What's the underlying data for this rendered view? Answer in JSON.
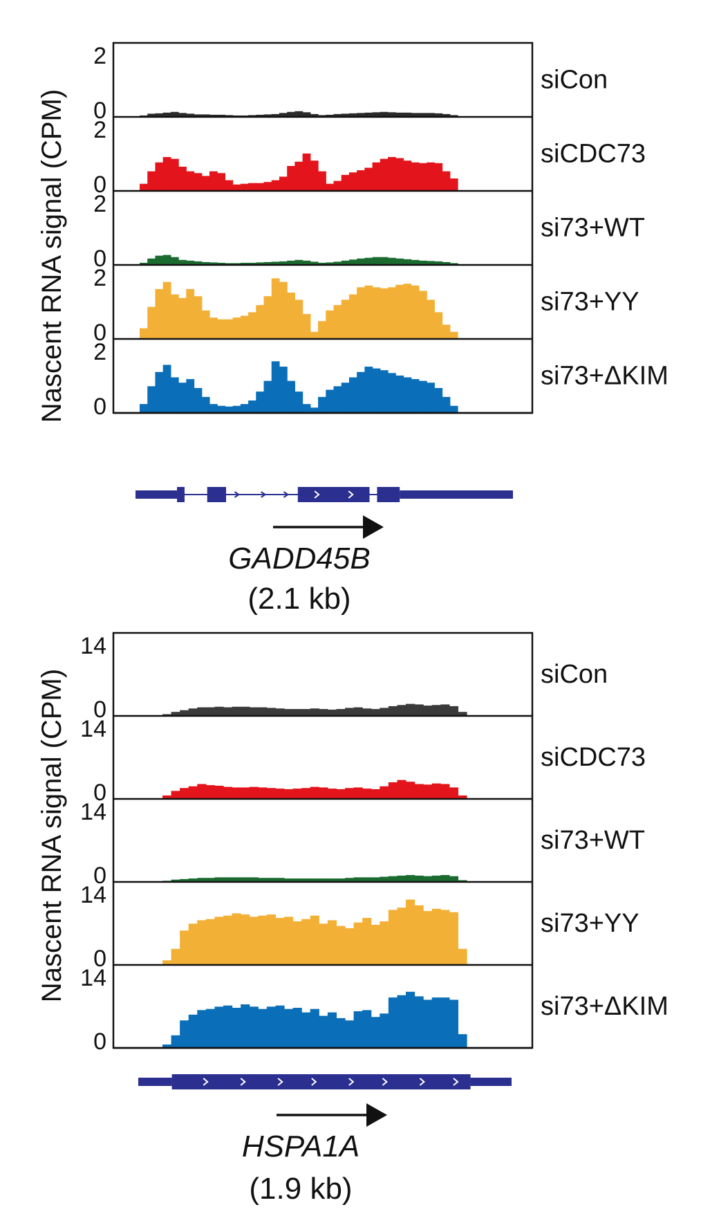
{
  "chart_data": [
    {
      "type": "area",
      "gene": "GADD45B",
      "gene_size": "(2.1 kb)",
      "ylabel": "Nascent RNA signal (CPM)",
      "ymax_label": "2",
      "ymin_label": "0",
      "ylim": [
        0,
        2
      ],
      "gene_model": {
        "color": "#2b2f8f",
        "intron_start": 0.0,
        "intron_end": 1.0,
        "exons": [
          [
            0.0,
            0.11,
            "thin"
          ],
          [
            0.11,
            0.13,
            "thick"
          ],
          [
            0.19,
            0.24,
            "thick"
          ],
          [
            0.43,
            0.62,
            "thick"
          ],
          [
            0.64,
            0.7,
            "thick"
          ],
          [
            0.7,
            1.0,
            "thin"
          ]
        ],
        "chevrons_in_exons": [
          0.48,
          0.57
        ],
        "chevrons_in_intron": [
          0.27,
          0.34,
          0.4
        ]
      },
      "series": [
        {
          "name": "siCon",
          "color": "#2a2a2a",
          "values": [
            0.04,
            0.09,
            0.1,
            0.12,
            0.14,
            0.11,
            0.09,
            0.07,
            0.07,
            0.06,
            0.06,
            0.05,
            0.04,
            0.04,
            0.05,
            0.06,
            0.07,
            0.08,
            0.11,
            0.14,
            0.16,
            0.13,
            0.08,
            0.05,
            0.06,
            0.08,
            0.09,
            0.1,
            0.11,
            0.12,
            0.13,
            0.14,
            0.13,
            0.12,
            0.12,
            0.11,
            0.11,
            0.11,
            0.1,
            0.08,
            0.05
          ]
        },
        {
          "name": "siCDC73",
          "color": "#e3141b",
          "values": [
            0.2,
            0.55,
            0.8,
            0.95,
            0.9,
            0.68,
            0.55,
            0.5,
            0.42,
            0.55,
            0.5,
            0.3,
            0.18,
            0.2,
            0.22,
            0.22,
            0.25,
            0.3,
            0.4,
            0.7,
            0.82,
            1.05,
            0.85,
            0.55,
            0.2,
            0.28,
            0.45,
            0.52,
            0.58,
            0.65,
            0.8,
            0.9,
            0.95,
            0.92,
            0.85,
            0.8,
            0.78,
            0.8,
            0.78,
            0.55,
            0.35
          ]
        },
        {
          "name": "si73+WT",
          "color": "#1b6b30",
          "values": [
            0.06,
            0.18,
            0.26,
            0.28,
            0.22,
            0.14,
            0.12,
            0.1,
            0.08,
            0.07,
            0.06,
            0.05,
            0.05,
            0.06,
            0.06,
            0.07,
            0.08,
            0.09,
            0.1,
            0.12,
            0.14,
            0.12,
            0.09,
            0.06,
            0.07,
            0.09,
            0.12,
            0.15,
            0.18,
            0.2,
            0.22,
            0.22,
            0.2,
            0.18,
            0.16,
            0.14,
            0.12,
            0.11,
            0.1,
            0.08,
            0.05
          ]
        },
        {
          "name": "si73+YY",
          "color": "#f3b036",
          "values": [
            0.3,
            0.9,
            1.4,
            1.6,
            1.25,
            1.15,
            1.4,
            1.2,
            0.8,
            0.6,
            0.55,
            0.55,
            0.6,
            0.65,
            0.75,
            0.95,
            1.2,
            1.7,
            1.6,
            1.3,
            1.1,
            0.7,
            0.2,
            0.5,
            0.8,
            0.95,
            1.1,
            1.25,
            1.45,
            1.5,
            1.45,
            1.42,
            1.45,
            1.52,
            1.55,
            1.5,
            1.35,
            1.1,
            0.75,
            0.4,
            0.2
          ]
        },
        {
          "name": "si73+ΔKIM",
          "color": "#0a6fb8",
          "values": [
            0.25,
            0.75,
            1.15,
            1.35,
            1.0,
            0.85,
            0.95,
            0.7,
            0.45,
            0.25,
            0.2,
            0.18,
            0.2,
            0.25,
            0.35,
            0.6,
            0.9,
            1.45,
            1.3,
            0.9,
            0.6,
            0.25,
            0.15,
            0.45,
            0.65,
            0.75,
            0.85,
            1.0,
            1.15,
            1.3,
            1.25,
            1.2,
            1.12,
            1.05,
            1.0,
            0.95,
            0.9,
            0.85,
            0.7,
            0.45,
            0.2
          ]
        }
      ]
    },
    {
      "type": "area",
      "gene": "HSPA1A",
      "gene_size": "(1.9 kb)",
      "ylabel": "Nascent RNA signal (CPM)",
      "ymax_label": "14",
      "ymin_label": "0",
      "ylim": [
        0,
        14
      ],
      "gene_model": {
        "color": "#2b2f8f",
        "intron_start": 0.0,
        "intron_end": 1.0,
        "exons": [
          [
            0.0,
            0.09,
            "thin"
          ],
          [
            0.09,
            0.89,
            "thick"
          ],
          [
            0.89,
            1.0,
            "thin"
          ]
        ],
        "chevrons_in_exons": [
          0.18,
          0.28,
          0.38,
          0.47,
          0.57,
          0.66,
          0.76,
          0.85
        ],
        "chevrons_in_intron": []
      },
      "series": [
        {
          "name": "siCon",
          "color": "#3a3a3a",
          "values": [
            0.3,
            0.7,
            1.0,
            1.3,
            1.5,
            1.5,
            1.6,
            1.5,
            1.6,
            1.6,
            1.5,
            1.5,
            1.4,
            1.3,
            1.2,
            1.2,
            1.2,
            1.3,
            1.2,
            1.1,
            1.2,
            1.4,
            1.5,
            1.3,
            1.2,
            1.4,
            1.7,
            1.9,
            2.1,
            2.0,
            1.8,
            1.9,
            2.0,
            1.7,
            0.7
          ]
        },
        {
          "name": "siCDC73",
          "color": "#e3141b",
          "values": [
            0.6,
            1.4,
            1.9,
            2.2,
            2.6,
            2.4,
            2.3,
            2.1,
            2.0,
            2.0,
            2.1,
            2.0,
            1.9,
            1.8,
            1.7,
            1.8,
            1.9,
            2.1,
            2.0,
            1.8,
            1.7,
            1.9,
            2.0,
            1.8,
            1.7,
            2.2,
            2.9,
            3.3,
            3.0,
            2.6,
            2.5,
            2.7,
            2.6,
            2.0,
            0.6
          ]
        },
        {
          "name": "si73+WT",
          "color": "#1b6b30",
          "values": [
            0.2,
            0.4,
            0.5,
            0.6,
            0.7,
            0.7,
            0.8,
            0.8,
            0.8,
            0.8,
            0.8,
            0.7,
            0.7,
            0.7,
            0.6,
            0.6,
            0.6,
            0.6,
            0.6,
            0.6,
            0.6,
            0.7,
            0.8,
            0.8,
            0.8,
            0.9,
            1.0,
            1.1,
            1.2,
            1.1,
            1.0,
            1.1,
            1.2,
            1.0,
            0.3
          ]
        },
        {
          "name": "si73+YY",
          "color": "#f3b036",
          "values": [
            0.8,
            2.8,
            6.0,
            7.2,
            7.8,
            8.0,
            8.4,
            8.6,
            9.0,
            8.8,
            8.4,
            8.6,
            8.8,
            8.2,
            8.4,
            7.6,
            8.0,
            8.6,
            7.2,
            7.8,
            6.8,
            6.4,
            7.4,
            8.2,
            7.0,
            7.6,
            9.6,
            10.0,
            11.4,
            10.4,
            9.4,
            9.8,
            9.6,
            9.2,
            2.8
          ]
        },
        {
          "name": "si73+ΔKIM",
          "color": "#0a6fb8",
          "values": [
            0.6,
            2.2,
            4.8,
            5.8,
            6.6,
            6.8,
            7.2,
            7.4,
            7.0,
            7.6,
            7.2,
            6.8,
            7.2,
            7.4,
            6.8,
            7.0,
            6.2,
            6.8,
            5.6,
            6.2,
            5.2,
            4.8,
            6.4,
            6.6,
            5.4,
            6.0,
            8.8,
            9.2,
            9.8,
            9.0,
            8.4,
            8.8,
            8.8,
            8.4,
            2.4
          ]
        }
      ]
    }
  ]
}
